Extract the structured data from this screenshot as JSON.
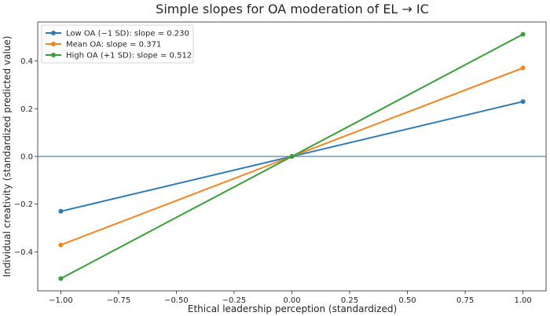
{
  "chart_data": {
    "type": "line",
    "title": "Simple slopes for OA moderation of EL → IC",
    "xlabel": "Ethical leadership perception (standardized)",
    "ylabel": "Individual creativity (standardized predicted value)",
    "x": [
      -1.0,
      0.0,
      1.0
    ],
    "xlim": [
      -1.1,
      1.1
    ],
    "ylim": [
      -0.5635,
      0.5635
    ],
    "xticks": [
      "−1.00",
      "−0.75",
      "−0.50",
      "−0.25",
      "0.00",
      "0.25",
      "0.50",
      "0.75",
      "1.00"
    ],
    "xtick_values": [
      -1.0,
      -0.75,
      -0.5,
      -0.25,
      0.0,
      0.25,
      0.5,
      0.75,
      1.0
    ],
    "yticks": [
      "−0.4",
      "−0.2",
      "0.0",
      "0.2",
      "0.4"
    ],
    "ytick_values": [
      -0.4,
      -0.2,
      0.0,
      0.2,
      0.4
    ],
    "reference_line_y": 0.0,
    "grid": false,
    "legend_position": "top-left",
    "series": [
      {
        "name": "Low OA (−1 SD): slope = 0.230",
        "values": [
          -0.23,
          0.0,
          0.23
        ],
        "color": "#2f7bb6"
      },
      {
        "name": "Mean OA: slope = 0.371",
        "values": [
          -0.371,
          0.0,
          0.371
        ],
        "color": "#f28522"
      },
      {
        "name": "High OA (+1 SD): slope = 0.512",
        "values": [
          -0.512,
          0.0,
          0.512
        ],
        "color": "#3a9e3a"
      }
    ],
    "reference_line_color": "#4a86b0"
  }
}
